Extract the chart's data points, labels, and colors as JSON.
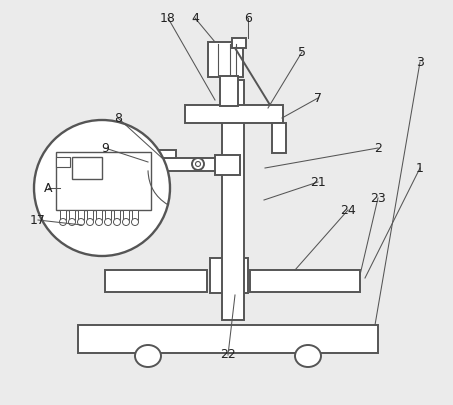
{
  "bg_color": "#ebebeb",
  "line_color": "#555555",
  "lw": 1.4,
  "label_fs": 9,
  "labels": [
    [
      "1",
      420,
      168
    ],
    [
      "2",
      378,
      148
    ],
    [
      "3",
      418,
      62
    ],
    [
      "4",
      196,
      18
    ],
    [
      "5",
      302,
      52
    ],
    [
      "6",
      250,
      18
    ],
    [
      "7",
      318,
      98
    ],
    [
      "8",
      118,
      118
    ],
    [
      "9",
      108,
      148
    ],
    [
      "17",
      38,
      220
    ],
    [
      "18",
      168,
      18
    ],
    [
      "21",
      318,
      182
    ],
    [
      "22",
      228,
      355
    ],
    [
      "23",
      378,
      198
    ],
    [
      "24",
      348,
      210
    ],
    [
      "A",
      48,
      188
    ]
  ],
  "leader_lines": [
    [
      "1",
      420,
      168,
      378,
      208
    ],
    [
      "2",
      378,
      148,
      268,
      168
    ],
    [
      "3",
      418,
      62,
      388,
      72
    ],
    [
      "4",
      196,
      18,
      212,
      58
    ],
    [
      "5",
      302,
      52,
      280,
      108
    ],
    [
      "6",
      250,
      18,
      252,
      58
    ],
    [
      "7",
      318,
      98,
      288,
      118
    ],
    [
      "8",
      118,
      118,
      165,
      158
    ],
    [
      "9",
      108,
      148,
      148,
      168
    ],
    [
      "17",
      38,
      220,
      80,
      235
    ],
    [
      "18",
      168,
      18,
      218,
      90
    ],
    [
      "21",
      318,
      182,
      268,
      202
    ],
    [
      "22",
      228,
      355,
      238,
      310
    ],
    [
      "23",
      378,
      198,
      358,
      208
    ],
    [
      "24",
      348,
      210,
      295,
      208
    ],
    [
      "A",
      48,
      188,
      90,
      195
    ]
  ]
}
